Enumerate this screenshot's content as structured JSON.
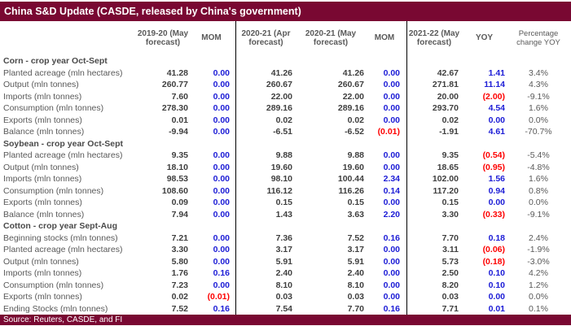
{
  "title": "China S&D Update (CASDE, released by China's government)",
  "source": "Source: Reuters, CASDE, and FI",
  "accent_color": "#790832",
  "delta_positive_color": "#1c1cd6",
  "delta_negative_color": "#fe0000",
  "columns": [
    "2019-20 (May forecast)",
    "MOM",
    "2020-21 (Apr forecast)",
    "2020-21 (May forecast)",
    "MOM",
    "2021-22 (May forecast)",
    "YOY",
    "Percentage change YOY"
  ],
  "sections": [
    {
      "name": "Corn - crop year Oct-Sept",
      "rows": [
        {
          "label": "Planted acreage (mln hectares)",
          "values": [
            "41.28",
            "0.00",
            "41.26",
            "41.26",
            "0.00",
            "42.67",
            "1.41",
            "3.4%"
          ]
        },
        {
          "label": "Output (mln tonnes)",
          "values": [
            "260.77",
            "0.00",
            "260.67",
            "260.67",
            "0.00",
            "271.81",
            "11.14",
            "4.3%"
          ]
        },
        {
          "label": "Imports (mln tonnes)",
          "values": [
            "7.60",
            "0.00",
            "22.00",
            "22.00",
            "0.00",
            "20.00",
            "(2.00)",
            "-9.1%"
          ]
        },
        {
          "label": "Consumption (mln tonnes)",
          "values": [
            "278.30",
            "0.00",
            "289.16",
            "289.16",
            "0.00",
            "293.70",
            "4.54",
            "1.6%"
          ]
        },
        {
          "label": "Exports (mln tonnes)",
          "values": [
            "0.01",
            "0.00",
            "0.02",
            "0.02",
            "0.00",
            "0.02",
            "0.00",
            "0.0%"
          ]
        },
        {
          "label": "Balance (mln tonnes)",
          "values": [
            "-9.94",
            "0.00",
            "-6.51",
            "-6.52",
            "(0.01)",
            "-1.91",
            "4.61",
            "-70.7%"
          ]
        }
      ]
    },
    {
      "name": "Soybean - crop year Oct-Sept",
      "rows": [
        {
          "label": "Planted acreage (mln hectares)",
          "values": [
            "9.35",
            "0.00",
            "9.88",
            "9.88",
            "0.00",
            "9.35",
            "(0.54)",
            "-5.4%"
          ]
        },
        {
          "label": "Output (mln tonnes)",
          "values": [
            "18.10",
            "0.00",
            "19.60",
            "19.60",
            "0.00",
            "18.65",
            "(0.95)",
            "-4.8%"
          ]
        },
        {
          "label": "Imports (mln tonnes)",
          "values": [
            "98.53",
            "0.00",
            "98.10",
            "100.44",
            "2.34",
            "102.00",
            "1.56",
            "1.6%"
          ]
        },
        {
          "label": "Consumption (mln tonnes)",
          "values": [
            "108.60",
            "0.00",
            "116.12",
            "116.26",
            "0.14",
            "117.20",
            "0.94",
            "0.8%"
          ]
        },
        {
          "label": "Exports (mln tonnes)",
          "values": [
            "0.09",
            "0.00",
            "0.15",
            "0.15",
            "0.00",
            "0.15",
            "0.00",
            "0.0%"
          ]
        },
        {
          "label": "Balance (mln tonnes)",
          "values": [
            "7.94",
            "0.00",
            "1.43",
            "3.63",
            "2.20",
            "3.30",
            "(0.33)",
            "-9.1%"
          ]
        }
      ]
    },
    {
      "name": "Cotton - crop year Sept-Aug",
      "rows": [
        {
          "label": "Beginning stocks (mln tonnes)",
          "values": [
            "7.21",
            "0.00",
            "7.36",
            "7.52",
            "0.16",
            "7.70",
            "0.18",
            "2.4%"
          ]
        },
        {
          "label": "Planted acreage (mln hectares)",
          "values": [
            "3.30",
            "0.00",
            "3.17",
            "3.17",
            "0.00",
            "3.11",
            "(0.06)",
            "-1.9%"
          ]
        },
        {
          "label": "Output (mln tonnes)",
          "values": [
            "5.80",
            "0.00",
            "5.91",
            "5.91",
            "0.00",
            "5.73",
            "(0.18)",
            "-3.0%"
          ]
        },
        {
          "label": "Imports (mln tonnes)",
          "values": [
            "1.76",
            "0.16",
            "2.40",
            "2.40",
            "0.00",
            "2.50",
            "0.10",
            "4.2%"
          ]
        },
        {
          "label": "Consumption (mln tonnes)",
          "values": [
            "7.23",
            "0.00",
            "8.10",
            "8.10",
            "0.00",
            "8.20",
            "0.10",
            "1.2%"
          ]
        },
        {
          "label": "Exports (mln tonnes)",
          "values": [
            "0.02",
            "(0.01)",
            "0.03",
            "0.03",
            "0.00",
            "0.03",
            "0.00",
            "0.0%"
          ]
        },
        {
          "label": "Ending Stocks (mln tonnes)",
          "values": [
            "7.52",
            "0.16",
            "7.54",
            "7.70",
            "0.16",
            "7.71",
            "0.01",
            "0.1%"
          ]
        }
      ]
    }
  ]
}
